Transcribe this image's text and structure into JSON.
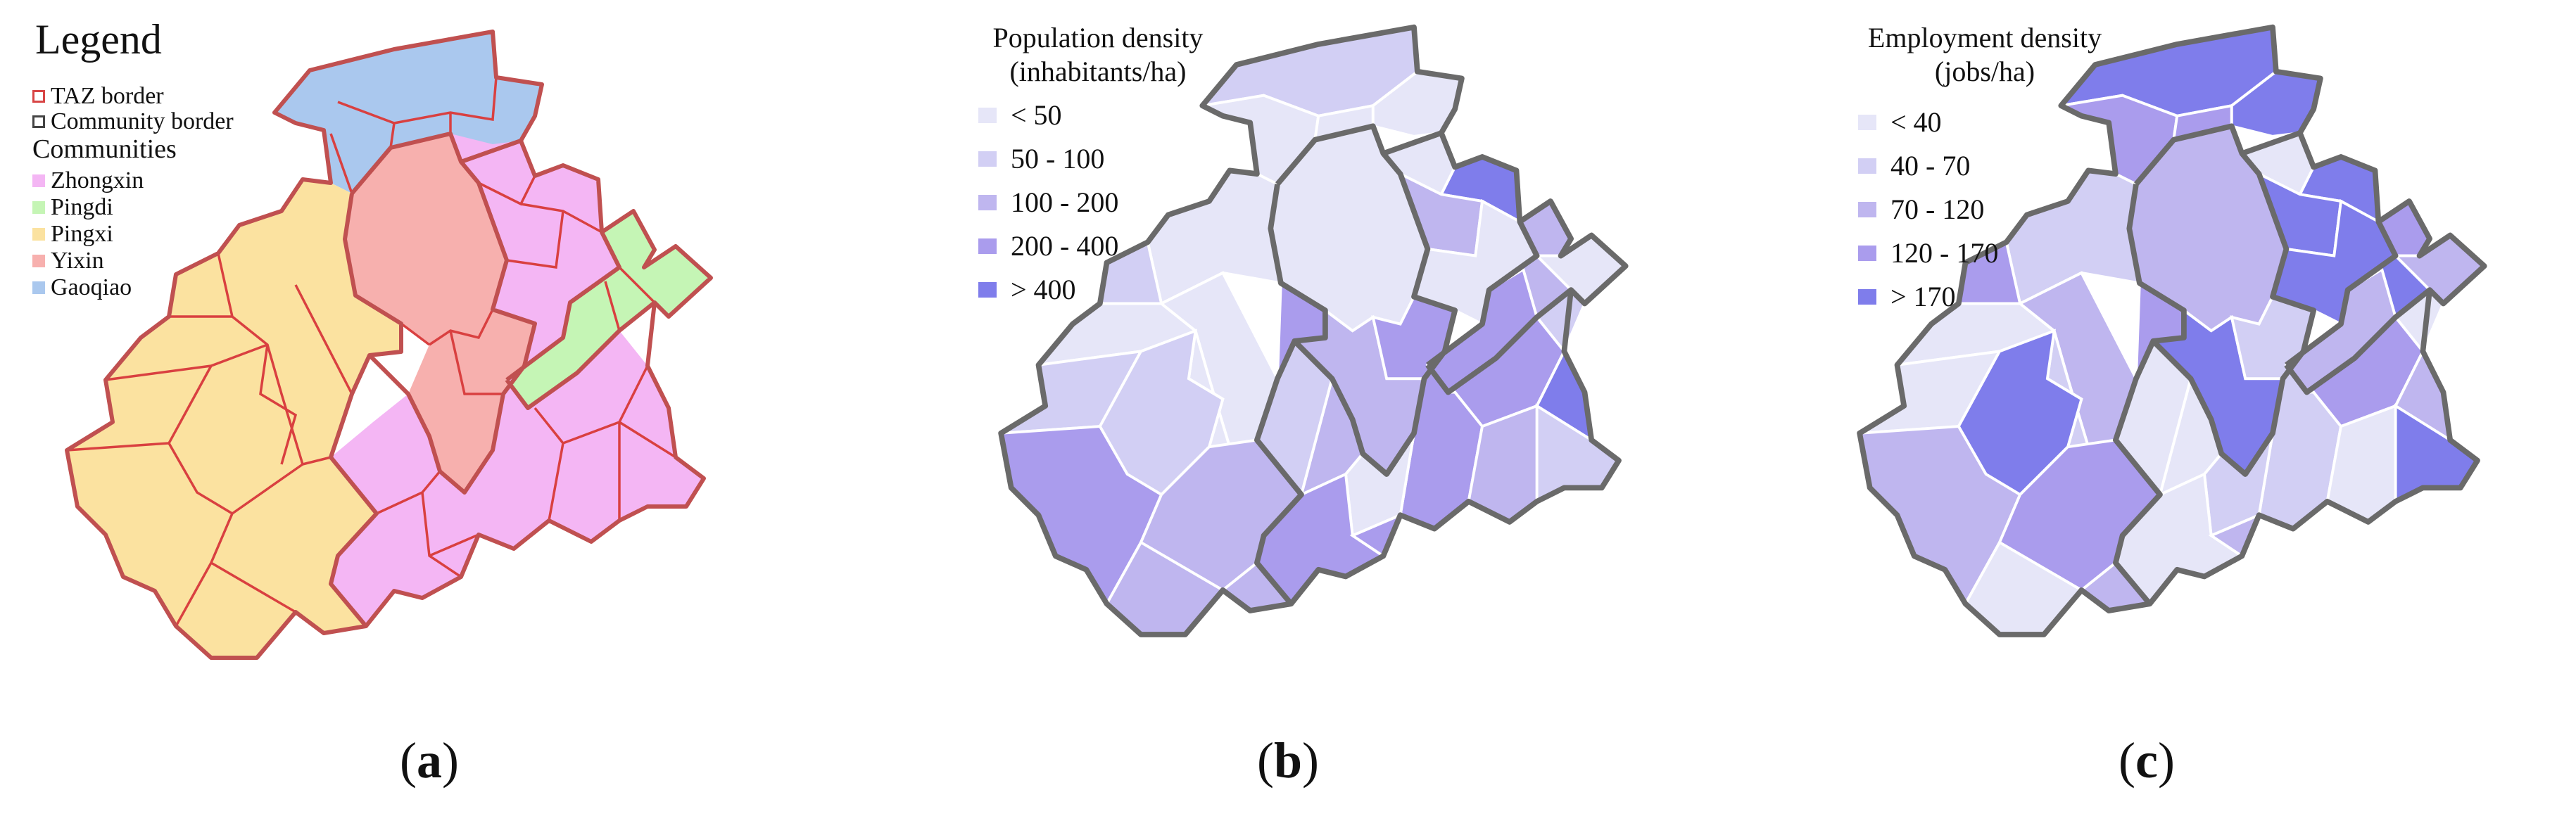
{
  "panel_a": {
    "legend_title": "Legend",
    "taz_border": "TAZ border",
    "community_border": "Community border",
    "communities_heading": "Communities",
    "communities": [
      {
        "name": "Zhongxin",
        "color": "#f4b6f4"
      },
      {
        "name": "Pingdi",
        "color": "#c5f5b5"
      },
      {
        "name": "Pingxi",
        "color": "#fbe2a0"
      },
      {
        "name": "Yixin",
        "color": "#f7b0ae"
      },
      {
        "name": "Gaoqiao",
        "color": "#aac8ee"
      }
    ],
    "caption": "a"
  },
  "panel_b": {
    "title_line1": "Population density",
    "title_line2": "(inhabitants/ha)",
    "classes": [
      {
        "label": "< 50",
        "color": "#e6e6f8"
      },
      {
        "label": "50 - 100",
        "color": "#d2cff4"
      },
      {
        "label": "100 - 200",
        "color": "#bfb6ef"
      },
      {
        "label": "200 - 400",
        "color": "#aa9ced"
      },
      {
        "label": "> 400",
        "color": "#7f7deb"
      }
    ],
    "caption": "b"
  },
  "panel_c": {
    "title_line1": "Employment density",
    "title_line2": "(jobs/ha)",
    "classes": [
      {
        "label": "< 40",
        "color": "#e6e6f8"
      },
      {
        "label": "40 - 70",
        "color": "#d2cff4"
      },
      {
        "label": "70 - 120",
        "color": "#bfb6ef"
      },
      {
        "label": "120 - 170",
        "color": "#aa9ced"
      },
      {
        "label": "> 170",
        "color": "#7f7deb"
      }
    ],
    "caption": "c"
  },
  "map_colors": {
    "taz_border": "#d94040",
    "community_border": "#6a6a6a"
  }
}
